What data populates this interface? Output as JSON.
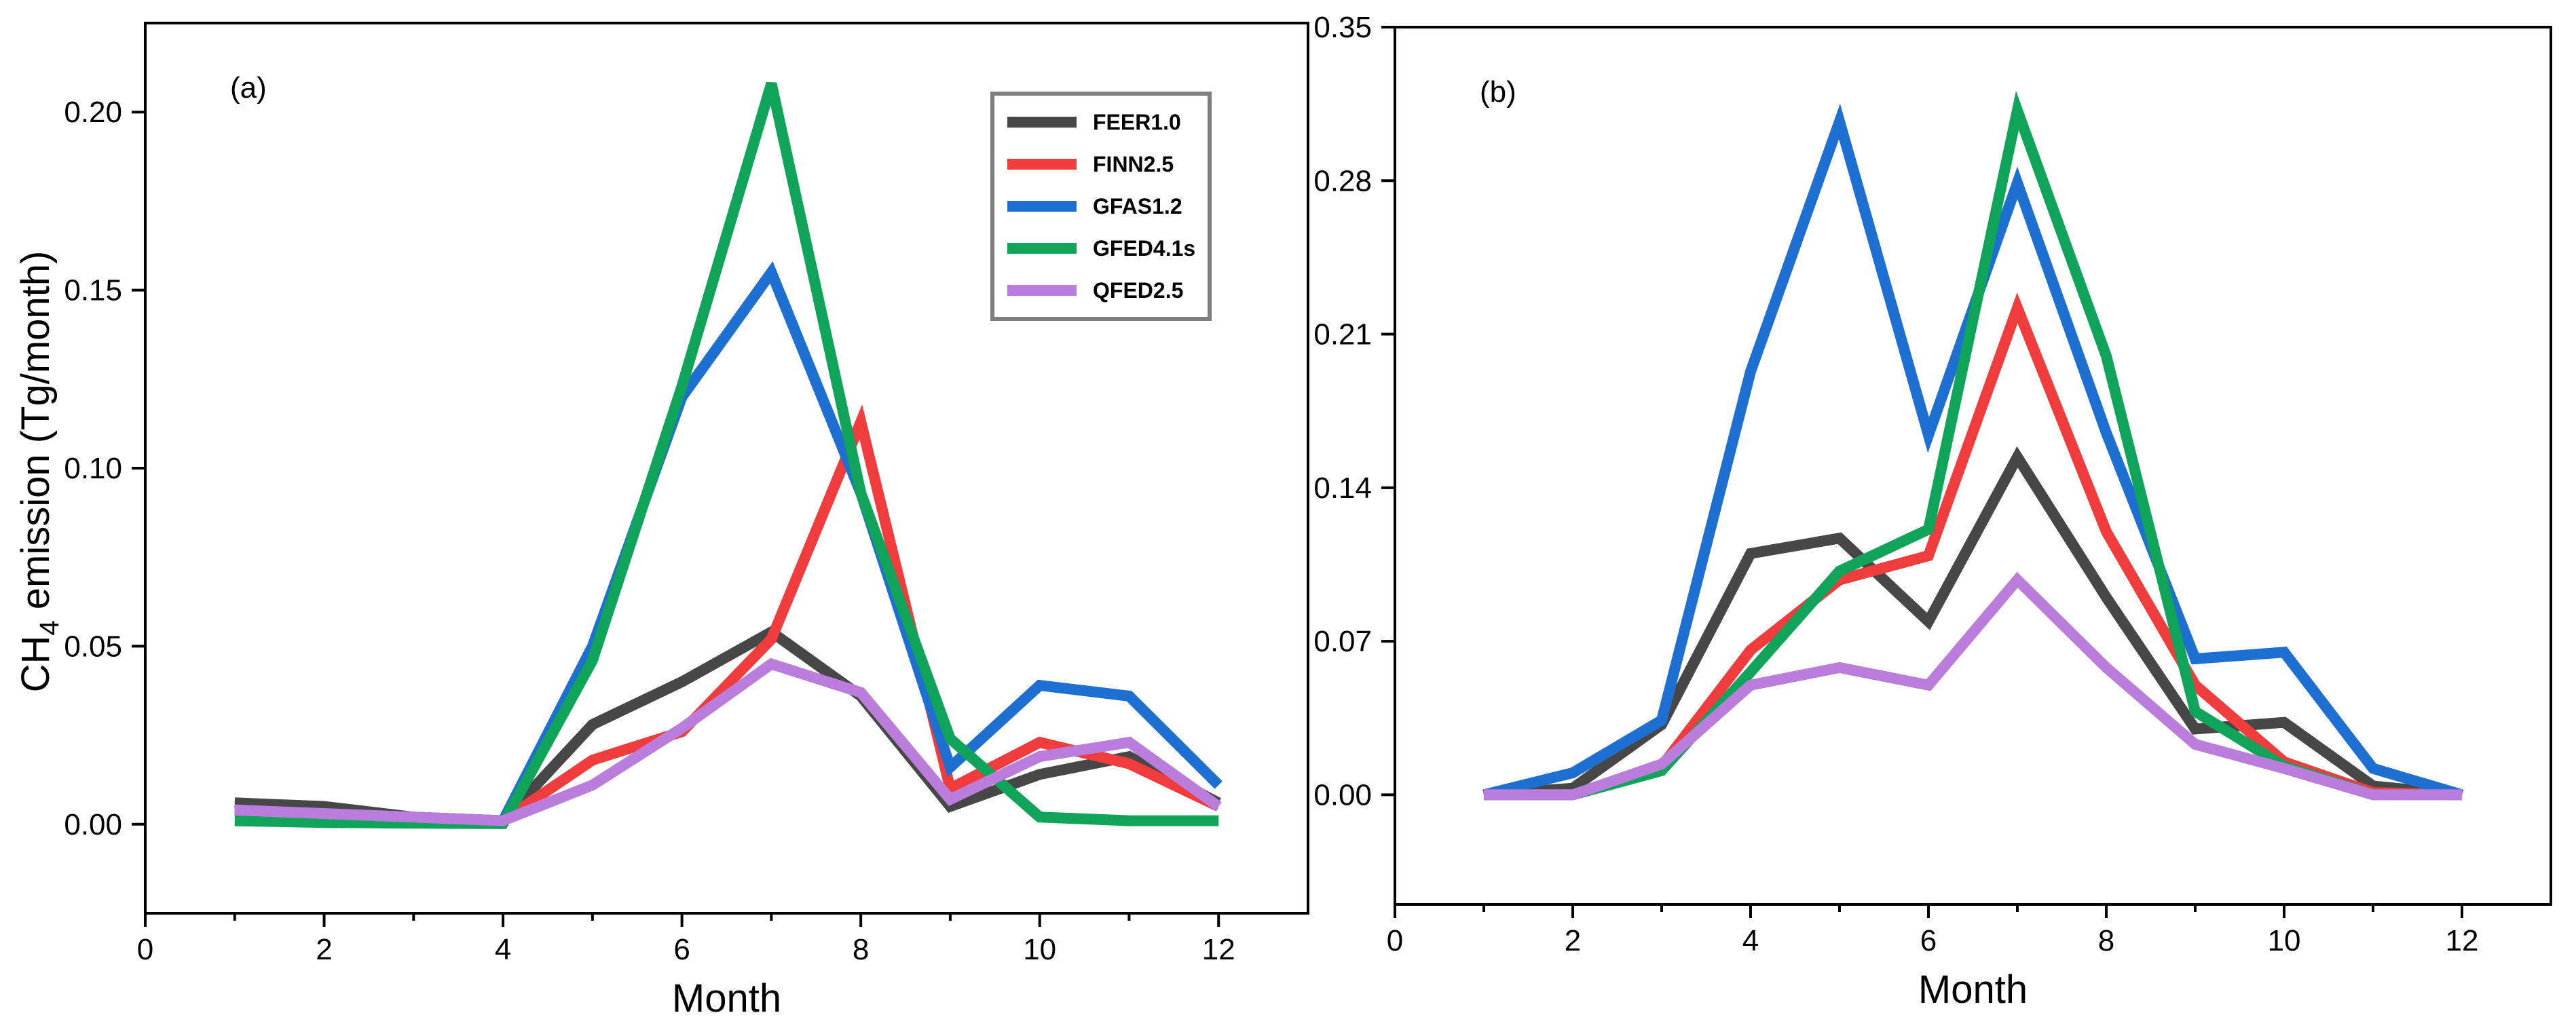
{
  "ylabel_prefix": "CH",
  "ylabel_sub": "4",
  "ylabel_suffix": " emission (Tg/month)",
  "colors": {
    "FEER1.0": "#474747",
    "FINN2.5": "#f03c3c",
    "GFAS1.2": "#1e6fd2",
    "GFED4.1s": "#10a35a",
    "QFED2.5": "#bb7ddc"
  },
  "chart_data": [
    {
      "type": "line",
      "panel": "(a)",
      "xlabel": "Month",
      "ylabel": "CH4 emission (Tg/month)",
      "xlim": [
        0,
        13
      ],
      "ylim": [
        -0.025,
        0.225
      ],
      "xticks": [
        0,
        2,
        4,
        6,
        8,
        10,
        12
      ],
      "xtick_labels": [
        "0",
        "2",
        "4",
        "6",
        "8",
        "10",
        "12"
      ],
      "yticks": [
        0.0,
        0.05,
        0.1,
        0.15,
        0.2
      ],
      "ytick_labels": [
        "0.00",
        "0.05",
        "0.10",
        "0.15",
        "0.20"
      ],
      "legend_position": "top-right",
      "x": [
        1,
        2,
        3,
        4,
        5,
        6,
        7,
        8,
        9,
        10,
        11,
        12
      ],
      "series": [
        {
          "name": "FEER1.0",
          "values": [
            0.006,
            0.005,
            0.002,
            0.001,
            0.028,
            0.04,
            0.054,
            0.036,
            0.005,
            0.014,
            0.019,
            0.006
          ]
        },
        {
          "name": "FINN2.5",
          "values": [
            0.004,
            0.003,
            0.001,
            0.001,
            0.018,
            0.026,
            0.052,
            0.113,
            0.01,
            0.023,
            0.017,
            0.005
          ]
        },
        {
          "name": "GFAS1.2",
          "values": [
            0.004,
            0.003,
            0.002,
            0.001,
            0.05,
            0.12,
            0.155,
            0.093,
            0.016,
            0.039,
            0.036,
            0.011
          ]
        },
        {
          "name": "GFED4.1s",
          "values": [
            0.001,
            0.0005,
            0.0003,
            0.0002,
            0.046,
            0.123,
            0.208,
            0.093,
            0.024,
            0.002,
            0.001,
            0.001
          ]
        },
        {
          "name": "QFED2.5",
          "values": [
            0.004,
            0.003,
            0.002,
            0.001,
            0.011,
            0.027,
            0.045,
            0.037,
            0.007,
            0.019,
            0.023,
            0.005
          ]
        }
      ]
    },
    {
      "type": "line",
      "panel": "(b)",
      "xlabel": "Month",
      "ylabel": "",
      "xlim": [
        0,
        13
      ],
      "ylim": [
        -0.05,
        0.35
      ],
      "xticks": [
        0,
        2,
        4,
        6,
        8,
        10,
        12
      ],
      "xtick_labels": [
        "0",
        "2",
        "4",
        "6",
        "8",
        "10",
        "12"
      ],
      "yticks": [
        0.0,
        0.07,
        0.14,
        0.21,
        0.28,
        0.35
      ],
      "ytick_labels": [
        "0.00",
        "0.07",
        "0.14",
        "0.21",
        "0.28",
        "0.35"
      ],
      "x": [
        1,
        2,
        3,
        4,
        5,
        6,
        7,
        8,
        9,
        10,
        11,
        12
      ],
      "series": [
        {
          "name": "FEER1.0",
          "values": [
            0.0,
            0.003,
            0.032,
            0.11,
            0.117,
            0.079,
            0.154,
            0.09,
            0.03,
            0.033,
            0.004,
            0.0
          ]
        },
        {
          "name": "FINN2.5",
          "values": [
            0.0,
            0.0,
            0.013,
            0.066,
            0.098,
            0.109,
            0.222,
            0.12,
            0.05,
            0.015,
            0.001,
            0.0
          ]
        },
        {
          "name": "GFAS1.2",
          "values": [
            0.0,
            0.01,
            0.034,
            0.193,
            0.307,
            0.164,
            0.279,
            0.165,
            0.062,
            0.065,
            0.012,
            0.0
          ]
        },
        {
          "name": "GFED4.1s",
          "values": [
            0.0,
            0.0,
            0.011,
            0.056,
            0.102,
            0.121,
            0.312,
            0.2,
            0.038,
            0.013,
            0.0,
            0.0
          ]
        },
        {
          "name": "QFED2.5",
          "values": [
            0.0,
            0.0,
            0.014,
            0.05,
            0.058,
            0.05,
            0.098,
            0.058,
            0.023,
            0.012,
            0.0,
            0.0
          ]
        }
      ]
    }
  ]
}
